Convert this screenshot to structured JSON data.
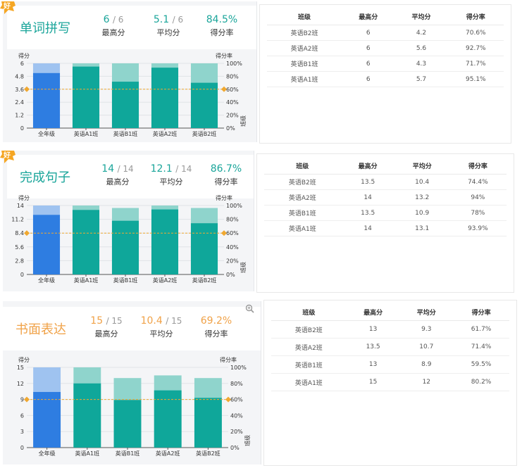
{
  "columns": [
    "班级",
    "最高分",
    "平均分",
    "得分率"
  ],
  "badge_text": "好",
  "chart_labels": {
    "y_left": "得分",
    "y_right": "得分率",
    "side_label": "班级"
  },
  "colors": {
    "teal": "#0fa79a",
    "teal_light": "#8fd4cc",
    "blue": "#2e7de1",
    "blue_light": "#9fc3f0",
    "ref_line": "#f0a830",
    "title_teal": "#1aa59a",
    "title_orange": "#f0a248",
    "badge": "#f5a623"
  },
  "sections": [
    {
      "title": "单词拼写",
      "accent": "teal",
      "badge": true,
      "stats": [
        {
          "value": "6",
          "total": "/ 6",
          "label": "最高分"
        },
        {
          "value": "5.1",
          "total": "/ 6",
          "label": "平均分"
        },
        {
          "value": "84.5%",
          "total": "",
          "label": "得分率"
        }
      ],
      "table": [
        [
          "英语B2班",
          "6",
          "4.2",
          "70.6%"
        ],
        [
          "英语A2班",
          "6",
          "5.6",
          "92.7%"
        ],
        [
          "英语B1班",
          "6",
          "4.3",
          "71.7%"
        ],
        [
          "英语A1班",
          "6",
          "5.7",
          "95.1%"
        ]
      ],
      "chart_data": {
        "type": "bar",
        "categories": [
          "全年级",
          "英语A1班",
          "英语B1班",
          "英语A2班",
          "英语B2班"
        ],
        "series": [
          {
            "name": "最高分",
            "values": [
              6,
              6,
              6,
              6,
              6
            ]
          },
          {
            "name": "平均分",
            "values": [
              5.1,
              5.7,
              4.3,
              5.6,
              4.2
            ]
          }
        ],
        "y_ticks": [
          "0",
          "1.2",
          "2.4",
          "3.6",
          "4.8",
          "6"
        ],
        "y2_ticks": [
          "0%",
          "20%",
          "40%",
          "60%",
          "80%",
          "100%"
        ],
        "ylim": [
          0,
          6
        ],
        "y2lim": [
          0,
          100
        ],
        "reference_line": 60,
        "xlabel": "班级",
        "ylabel": "得分",
        "y2label": "得分率"
      }
    },
    {
      "title": "完成句子",
      "accent": "teal",
      "badge": true,
      "stats": [
        {
          "value": "14",
          "total": "/ 14",
          "label": "最高分"
        },
        {
          "value": "12.1",
          "total": "/ 14",
          "label": "平均分"
        },
        {
          "value": "86.7%",
          "total": "",
          "label": "得分率"
        }
      ],
      "table": [
        [
          "英语B2班",
          "13.5",
          "10.4",
          "74.4%"
        ],
        [
          "英语A2班",
          "14",
          "13.2",
          "94%"
        ],
        [
          "英语B1班",
          "13.5",
          "10.9",
          "78%"
        ],
        [
          "英语A1班",
          "14",
          "13.1",
          "93.9%"
        ]
      ],
      "chart_data": {
        "type": "bar",
        "categories": [
          "全年级",
          "英语A1班",
          "英语B1班",
          "英语A2班",
          "英语B2班"
        ],
        "series": [
          {
            "name": "最高分",
            "values": [
              14,
              14,
              13.5,
              14,
              13.5
            ]
          },
          {
            "name": "平均分",
            "values": [
              12.1,
              13.1,
              10.9,
              13.2,
              10.4
            ]
          }
        ],
        "y_ticks": [
          "0",
          "2.8",
          "5.6",
          "8.4",
          "11.2",
          "14"
        ],
        "y2_ticks": [
          "0%",
          "20%",
          "40%",
          "60%",
          "80%",
          "100%"
        ],
        "ylim": [
          0,
          14
        ],
        "y2lim": [
          0,
          100
        ],
        "reference_line": 60,
        "xlabel": "班级",
        "ylabel": "得分",
        "y2label": "得分率"
      }
    },
    {
      "title": "书面表达",
      "accent": "orange",
      "badge": false,
      "zoom_icon": "zoom-icon",
      "stats": [
        {
          "value": "15",
          "total": "/ 15",
          "label": "最高分"
        },
        {
          "value": "10.4",
          "total": "/ 15",
          "label": "平均分"
        },
        {
          "value": "69.2%",
          "total": "",
          "label": "得分率"
        }
      ],
      "table": [
        [
          "英语B2班",
          "13",
          "9.3",
          "61.7%"
        ],
        [
          "英语A2班",
          "13.5",
          "10.7",
          "71.4%"
        ],
        [
          "英语B1班",
          "13",
          "8.9",
          "59.5%"
        ],
        [
          "英语A1班",
          "15",
          "12",
          "80.2%"
        ]
      ],
      "chart_data": {
        "type": "bar",
        "categories": [
          "全年级",
          "英语A1班",
          "英语B1班",
          "英语A2班",
          "英语B2班"
        ],
        "series": [
          {
            "name": "最高分",
            "values": [
              15,
              15,
              13,
              13.5,
              13
            ]
          },
          {
            "name": "平均分",
            "values": [
              10.4,
              12,
              8.9,
              10.7,
              9.3
            ]
          }
        ],
        "y_ticks": [
          "0",
          "3",
          "6",
          "9",
          "12",
          "15"
        ],
        "y2_ticks": [
          "0%",
          "20%",
          "40%",
          "60%",
          "80%",
          "100%"
        ],
        "ylim": [
          0,
          15
        ],
        "y2lim": [
          0,
          100
        ],
        "reference_line": 60,
        "xlabel": "班级",
        "ylabel": "得分",
        "y2label": "得分率"
      }
    }
  ]
}
